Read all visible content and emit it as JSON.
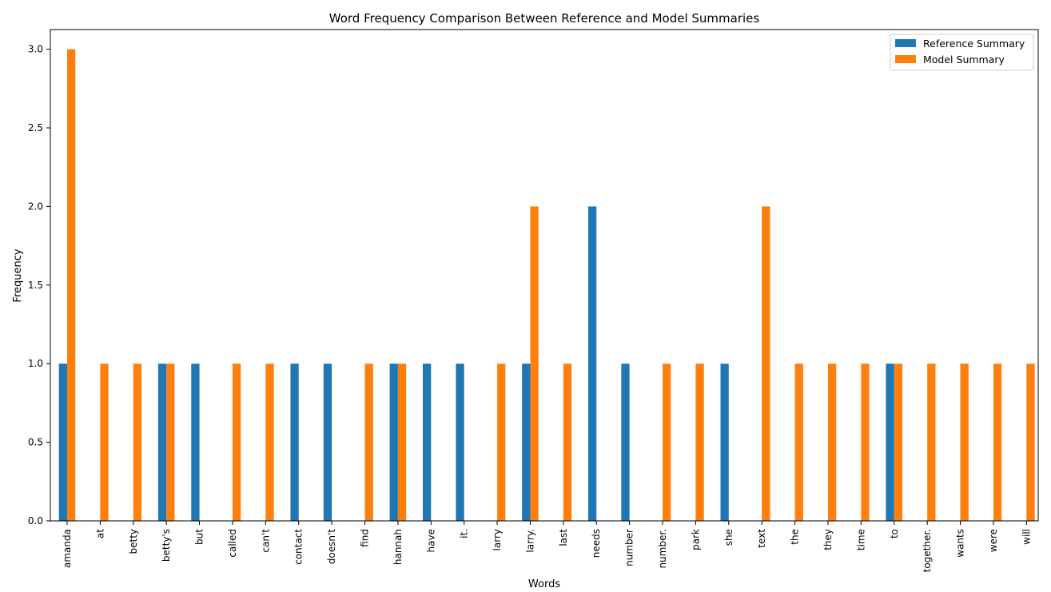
{
  "chart_data": {
    "type": "bar",
    "title": "Word Frequency Comparison Between Reference and Model Summaries",
    "xlabel": "Words",
    "ylabel": "Frequency",
    "ylim": [
      0,
      3.125
    ],
    "yticks": [
      "0.0",
      "0.5",
      "1.0",
      "1.5",
      "2.0",
      "2.5",
      "3.0"
    ],
    "legend_position": "top-right",
    "grid": false,
    "categories": [
      "amanda",
      "at",
      "betty",
      "betty's",
      "but",
      "called",
      "can't",
      "contact",
      "doesn't",
      "find",
      "hannah",
      "have",
      "it.",
      "larry",
      "larry.",
      "last",
      "needs",
      "number",
      "number.",
      "park",
      "she",
      "text",
      "the",
      "they",
      "time",
      "to",
      "together.",
      "wants",
      "were",
      "will"
    ],
    "series": [
      {
        "name": "Reference Summary",
        "color": "#1f77b4",
        "values": [
          1,
          0,
          0,
          1,
          1,
          0,
          0,
          1,
          1,
          0,
          1,
          1,
          1,
          0,
          1,
          0,
          2,
          1,
          0,
          0,
          1,
          0,
          0,
          0,
          0,
          1,
          0,
          0,
          0,
          0
        ]
      },
      {
        "name": "Model Summary",
        "color": "#ff7f0e",
        "values": [
          3,
          1,
          1,
          1,
          0,
          1,
          1,
          0,
          0,
          1,
          1,
          0,
          0,
          1,
          2,
          1,
          0,
          0,
          1,
          1,
          0,
          2,
          1,
          1,
          1,
          1,
          1,
          1,
          1,
          1
        ]
      }
    ]
  }
}
